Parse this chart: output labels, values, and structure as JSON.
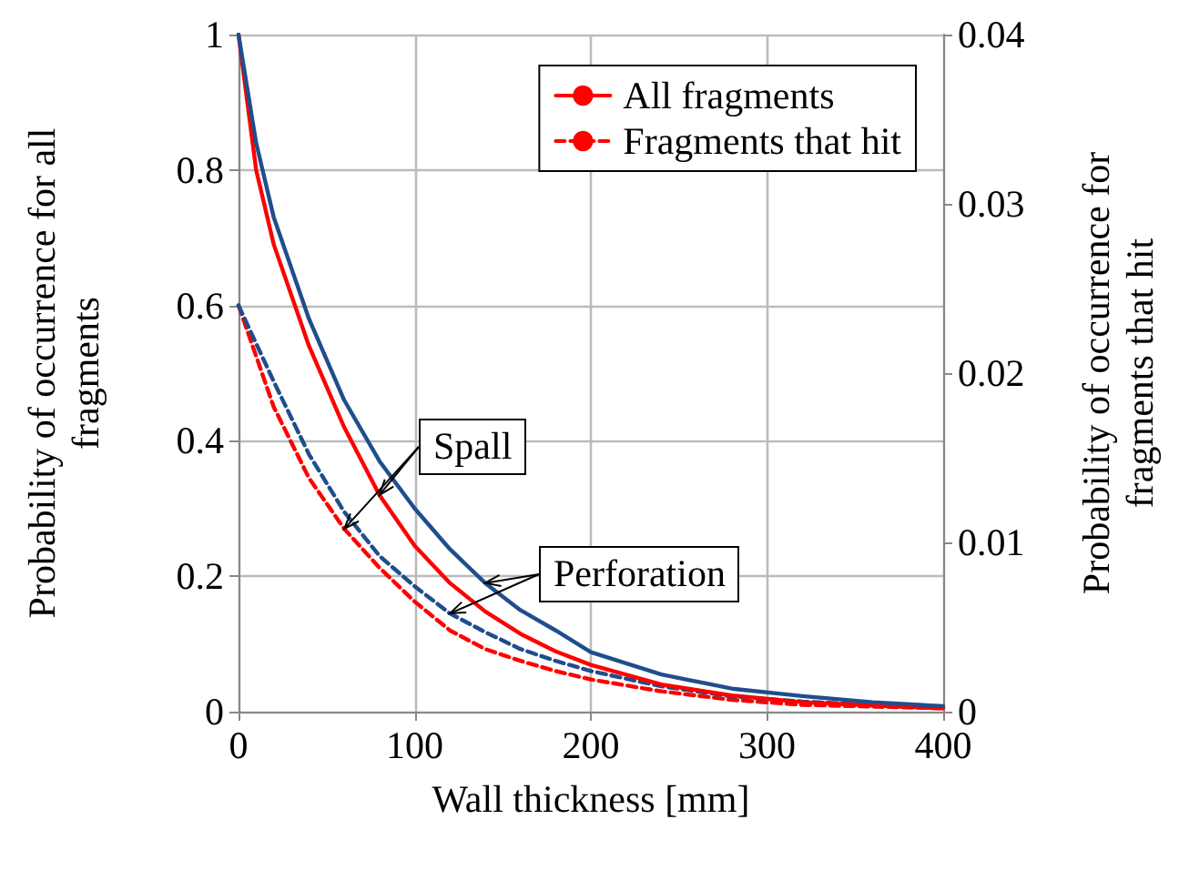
{
  "chart_data": {
    "type": "line",
    "xlabel": "Wall thickness [mm]",
    "ylabel": "Probability of occurrence for all fragments",
    "y2label": "Probability of occurrence for fragments that hit",
    "xlim": [
      0,
      400
    ],
    "xticks": [
      0,
      100,
      200,
      300,
      400
    ],
    "ylim": [
      0,
      1
    ],
    "yticks": [
      0,
      0.2,
      0.4,
      0.6,
      0.8,
      1
    ],
    "y2lim": [
      0,
      0.04
    ],
    "y2ticks": [
      0,
      0.01,
      0.02,
      0.03,
      0.04
    ],
    "grid": true,
    "legend": "top right",
    "marker": "none",
    "annotations": [
      {
        "text": "Spall",
        "x": 80,
        "y": 0.32
      },
      {
        "text": "Perforation",
        "x": 140,
        "y": 0.19
      }
    ],
    "series": [
      {
        "name": "All fragments",
        "color": "#ff0000",
        "line_style": "solid",
        "x": [
          0,
          10,
          20,
          40,
          60,
          80,
          100,
          120,
          140,
          160,
          180,
          200,
          240,
          280,
          320,
          360,
          400
        ],
        "values": [
          1,
          0.8,
          0.69,
          0.54,
          0.42,
          0.32,
          0.245,
          0.19,
          0.148,
          0.115,
          0.089,
          0.069,
          0.04,
          0.024,
          0.014,
          0.009,
          0.005
        ]
      },
      {
        "name": "Fragments that hit",
        "color": "#ff0000",
        "line_style": "dashed",
        "axis": "y2",
        "x": [
          0,
          20,
          40,
          60,
          80,
          100,
          120,
          140,
          160,
          180,
          200,
          240,
          280,
          320,
          360,
          400
        ],
        "values": [
          0.024,
          0.018,
          0.0138,
          0.0108,
          0.0085,
          0.0065,
          0.0048,
          0.0037,
          0.003,
          0.0024,
          0.0019,
          0.0012,
          0.0007,
          0.0004,
          0.0003,
          0.0002
        ]
      },
      {
        "color": "#1f4e8c",
        "line_style": "solid",
        "x": [
          0,
          10,
          20,
          40,
          60,
          80,
          100,
          120,
          140,
          160,
          180,
          200,
          240,
          280,
          320,
          360,
          400
        ],
        "values": [
          1,
          0.84,
          0.73,
          0.58,
          0.46,
          0.37,
          0.3,
          0.24,
          0.19,
          0.15,
          0.12,
          0.088,
          0.055,
          0.034,
          0.023,
          0.014,
          0.008
        ]
      },
      {
        "color": "#1f4e8c",
        "line_style": "dashed",
        "axis": "y2",
        "x": [
          0,
          20,
          40,
          60,
          80,
          100,
          120,
          140,
          160,
          180,
          200,
          240,
          280,
          320,
          360,
          400
        ],
        "values": [
          0.024,
          0.0195,
          0.0152,
          0.0118,
          0.0092,
          0.0074,
          0.0058,
          0.0047,
          0.0037,
          0.003,
          0.0024,
          0.0015,
          0.0009,
          0.0006,
          0.0004,
          0.0002
        ]
      }
    ]
  }
}
